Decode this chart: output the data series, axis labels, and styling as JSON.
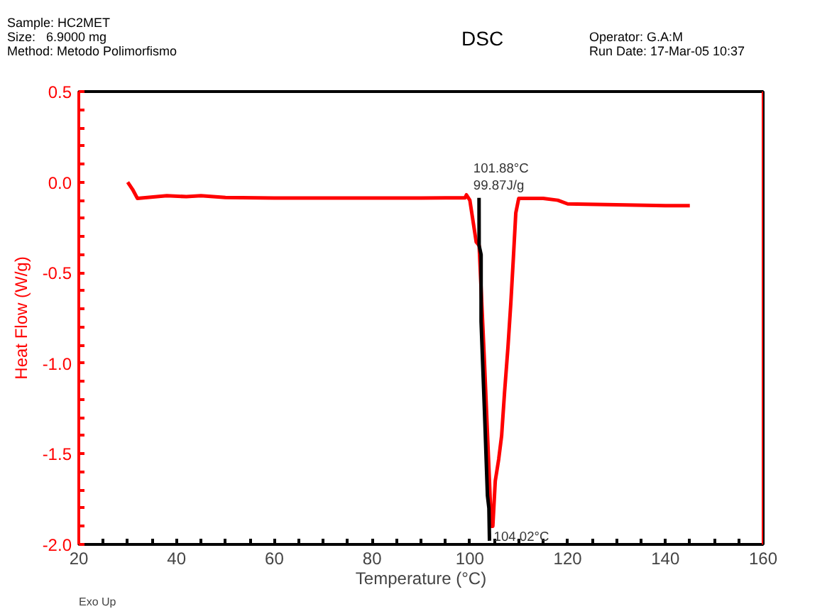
{
  "chart_data": {
    "type": "line",
    "title": "DSC",
    "xlabel": "Temperature (°C)",
    "ylabel": "Heat Flow (W/g)",
    "xlim": [
      20,
      160
    ],
    "ylim": [
      -2.0,
      0.5
    ],
    "xticks": [
      20,
      {
        "value": 25,
        "label": null
      },
      {
        "value": 30,
        "label": null
      },
      {
        "value": 35,
        "label": null
      },
      40,
      {
        "value": 45,
        "label": null
      },
      {
        "value": 50,
        "label": null
      },
      {
        "value": 55,
        "label": null
      },
      60,
      {
        "value": 65,
        "label": null
      },
      {
        "value": 70,
        "label": null
      },
      {
        "value": 75,
        "label": null
      },
      80,
      {
        "value": 85,
        "label": null
      },
      {
        "value": 90,
        "label": null
      },
      {
        "value": 95,
        "label": null
      },
      100,
      {
        "value": 105,
        "label": null
      },
      {
        "value": 110,
        "label": null
      },
      {
        "value": 115,
        "label": null
      },
      120,
      {
        "value": 125,
        "label": null
      },
      {
        "value": 130,
        "label": null
      },
      {
        "value": 135,
        "label": null
      },
      140,
      {
        "value": 145,
        "label": null
      },
      {
        "value": 150,
        "label": null
      },
      {
        "value": 155,
        "label": null
      },
      160
    ],
    "yticks": [
      {
        "value": 0.5,
        "label": "0.5"
      },
      {
        "value": 0.4,
        "label": null
      },
      {
        "value": 0.3,
        "label": null
      },
      {
        "value": 0.2,
        "label": null
      },
      {
        "value": 0.1,
        "label": null
      },
      {
        "value": 0,
        "label": "0.0"
      },
      {
        "value": -0.1,
        "label": null
      },
      {
        "value": -0.2,
        "label": null
      },
      {
        "value": -0.3,
        "label": null
      },
      {
        "value": -0.4,
        "label": null
      },
      {
        "value": -0.5,
        "label": "-0.5"
      },
      {
        "value": -0.6,
        "label": null
      },
      {
        "value": -0.7,
        "label": null
      },
      {
        "value": -0.8,
        "label": null
      },
      {
        "value": -0.9,
        "label": null
      },
      {
        "value": -1.0,
        "label": "-1.0"
      },
      {
        "value": -1.1,
        "label": null
      },
      {
        "value": -1.2,
        "label": null
      },
      {
        "value": -1.3,
        "label": null
      },
      {
        "value": -1.4,
        "label": null
      },
      {
        "value": -1.5,
        "label": "-1.5"
      },
      {
        "value": -1.6,
        "label": null
      },
      {
        "value": -1.7,
        "label": null
      },
      {
        "value": -1.8,
        "label": null
      },
      {
        "value": -1.9,
        "label": null
      },
      {
        "value": -2.0,
        "label": "-2.0"
      }
    ],
    "grid": false,
    "marker": "none",
    "line_style": "solid",
    "series": [
      {
        "color": "#ff0000",
        "x": [
          30,
          31,
          32,
          34,
          38,
          42,
          45,
          50,
          60,
          70,
          80,
          90,
          95,
          99,
          99.3,
          100,
          101.3,
          101.9,
          103,
          104.4,
          104.7,
          105.2,
          105.9,
          106.5,
          107.1,
          107.8,
          108.4,
          108.9,
          109.4,
          110,
          115,
          118,
          120,
          130,
          140,
          145
        ],
        "values": [
          0.0,
          -0.04,
          -0.09,
          -0.085,
          -0.075,
          -0.08,
          -0.075,
          -0.085,
          -0.088,
          -0.088,
          -0.088,
          -0.088,
          -0.087,
          -0.087,
          -0.07,
          -0.1,
          -0.33,
          -0.35,
          -1.0,
          -1.9,
          -1.9,
          -1.65,
          -1.53,
          -1.4,
          -1.16,
          -0.91,
          -0.66,
          -0.42,
          -0.17,
          -0.09,
          -0.09,
          -0.1,
          -0.12,
          -0.125,
          -0.13,
          -0.13
        ]
      },
      {
        "color": "#000000",
        "x": [
          101.88,
          101.9,
          102.3,
          102.3,
          103.0,
          103.6,
          103.9,
          104.02
        ],
        "values": [
          -0.087,
          -0.35,
          -0.4,
          -0.77,
          -1.27,
          -1.73,
          -1.8,
          -1.98
        ]
      }
    ],
    "ref_lines": [
      {
        "axis": "x",
        "value": 160,
        "color": "#ff0000"
      }
    ],
    "annotations": [
      "Sample: HC2MET",
      "Size:   6.9000 mg",
      "Method: Metodo Polimorfismo",
      "Operator: G.A:M",
      "Run Date: 17-Mar-05 10:37",
      "Exo Up",
      {
        "text": "101.88°C\n99.87J/g",
        "x": 101.88,
        "y": -0.087
      },
      {
        "text": "104.02°C",
        "x": 104.02,
        "y": -1.98
      }
    ]
  }
}
